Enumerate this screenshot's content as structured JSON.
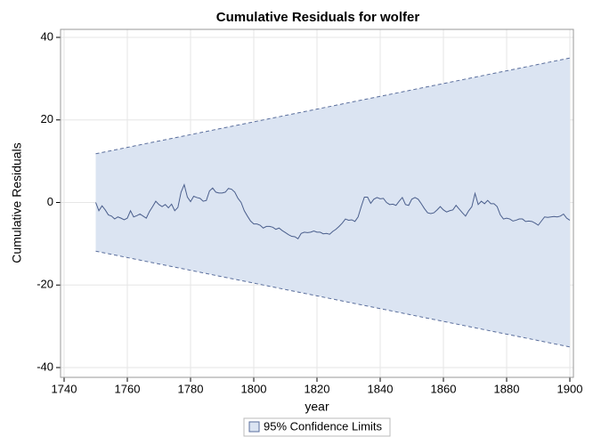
{
  "chart_data": {
    "type": "line",
    "title": "Cumulative Residuals for wolfer",
    "xlabel": "year",
    "ylabel": "Cumulative Residuals",
    "xlim": [
      1740,
      1900
    ],
    "xticks": [
      1740,
      1760,
      1780,
      1800,
      1820,
      1840,
      1860,
      1880,
      1900
    ],
    "ylim": [
      -40,
      40
    ],
    "yticks": [
      -40,
      -20,
      0,
      20,
      40
    ],
    "grid": true,
    "band": {
      "name": "95% Confidence Limits",
      "color": "#dbe4f2",
      "edge_color": "#5a6e9c",
      "x": [
        1750,
        1900
      ],
      "upper": [
        11.8,
        35
      ],
      "lower": [
        -11.8,
        -35
      ]
    },
    "series": [
      {
        "color": "#4a5e8c",
        "x": [
          1750,
          1751,
          1752,
          1753,
          1754,
          1755,
          1756,
          1757,
          1758,
          1759,
          1760,
          1761,
          1762,
          1763,
          1764,
          1765,
          1766,
          1767,
          1768,
          1769,
          1770,
          1771,
          1772,
          1773,
          1774,
          1775,
          1776,
          1777,
          1778,
          1779,
          1780,
          1781,
          1782,
          1783,
          1784,
          1785,
          1786,
          1787,
          1788,
          1789,
          1790,
          1791,
          1792,
          1793,
          1794,
          1795,
          1796,
          1797,
          1798,
          1799,
          1800,
          1801,
          1802,
          1803,
          1804,
          1805,
          1806,
          1807,
          1808,
          1809,
          1810,
          1811,
          1812,
          1813,
          1814,
          1815,
          1816,
          1817,
          1818,
          1819,
          1820,
          1821,
          1822,
          1823,
          1824,
          1825,
          1826,
          1827,
          1828,
          1829,
          1830,
          1831,
          1832,
          1833,
          1834,
          1835,
          1836,
          1837,
          1838,
          1839,
          1840,
          1841,
          1842,
          1843,
          1844,
          1845,
          1846,
          1847,
          1848,
          1849,
          1850,
          1851,
          1852,
          1853,
          1854,
          1855,
          1856,
          1857,
          1858,
          1859,
          1860,
          1861,
          1862,
          1863,
          1864,
          1865,
          1866,
          1867,
          1868,
          1869,
          1870,
          1871,
          1872,
          1873,
          1874,
          1875,
          1876,
          1877,
          1878,
          1879,
          1880,
          1881,
          1882,
          1883,
          1884,
          1885,
          1886,
          1887,
          1888,
          1889,
          1890,
          1891,
          1892,
          1893,
          1894,
          1895,
          1896,
          1897,
          1898,
          1899,
          1900
        ],
        "values": [
          0,
          -2,
          -0.8,
          -1.8,
          -3,
          -3.3,
          -4,
          -3.5,
          -3.8,
          -4.2,
          -3.8,
          -2,
          -3.5,
          -3.2,
          -2.8,
          -3.3,
          -3.8,
          -2.2,
          -1,
          0.3,
          -0.5,
          -1,
          -0.5,
          -1.3,
          -0.4,
          -2,
          -1.2,
          2.5,
          4.3,
          1.3,
          0.2,
          1.5,
          1.2,
          1,
          0.3,
          0.5,
          2.8,
          3.5,
          2.5,
          2.3,
          2.3,
          2.5,
          3.4,
          3.2,
          2.5,
          1,
          0,
          -2,
          -3.3,
          -4.5,
          -5.2,
          -5.2,
          -5.5,
          -6.2,
          -5.8,
          -5.8,
          -6,
          -6.5,
          -6.2,
          -6.8,
          -7.3,
          -7.8,
          -8.2,
          -8.3,
          -8.8,
          -7.5,
          -7.2,
          -7.3,
          -7.2,
          -6.9,
          -7.2,
          -7.2,
          -7.6,
          -7.5,
          -7.7,
          -7,
          -6.5,
          -5.8,
          -5,
          -4,
          -4.3,
          -4.2,
          -4.6,
          -3.5,
          -1,
          1.3,
          1.3,
          -0.2,
          0.8,
          1.2,
          0.9,
          1,
          0,
          -0.5,
          -0.4,
          -0.7,
          0.3,
          1.2,
          -0.5,
          -0.7,
          0.8,
          1.2,
          0.8,
          -0.3,
          -1.5,
          -2.5,
          -2.7,
          -2.5,
          -1.8,
          -1,
          -1.8,
          -2.3,
          -2,
          -1.8,
          -0.7,
          -1.6,
          -2.5,
          -3.3,
          -2,
          -1,
          2.2,
          -0.5,
          0.3,
          -0.3,
          0.5,
          -0.3,
          -0.3,
          -1,
          -3,
          -4,
          -3.8,
          -4,
          -4.5,
          -4.3,
          -4,
          -4,
          -4.6,
          -4.5,
          -4.6,
          -5,
          -5.5,
          -4.5,
          -3.5,
          -3.6,
          -3.5,
          -3.4,
          -3.5,
          -3.3,
          -2.8,
          -3.8,
          -4.3
        ]
      }
    ]
  }
}
